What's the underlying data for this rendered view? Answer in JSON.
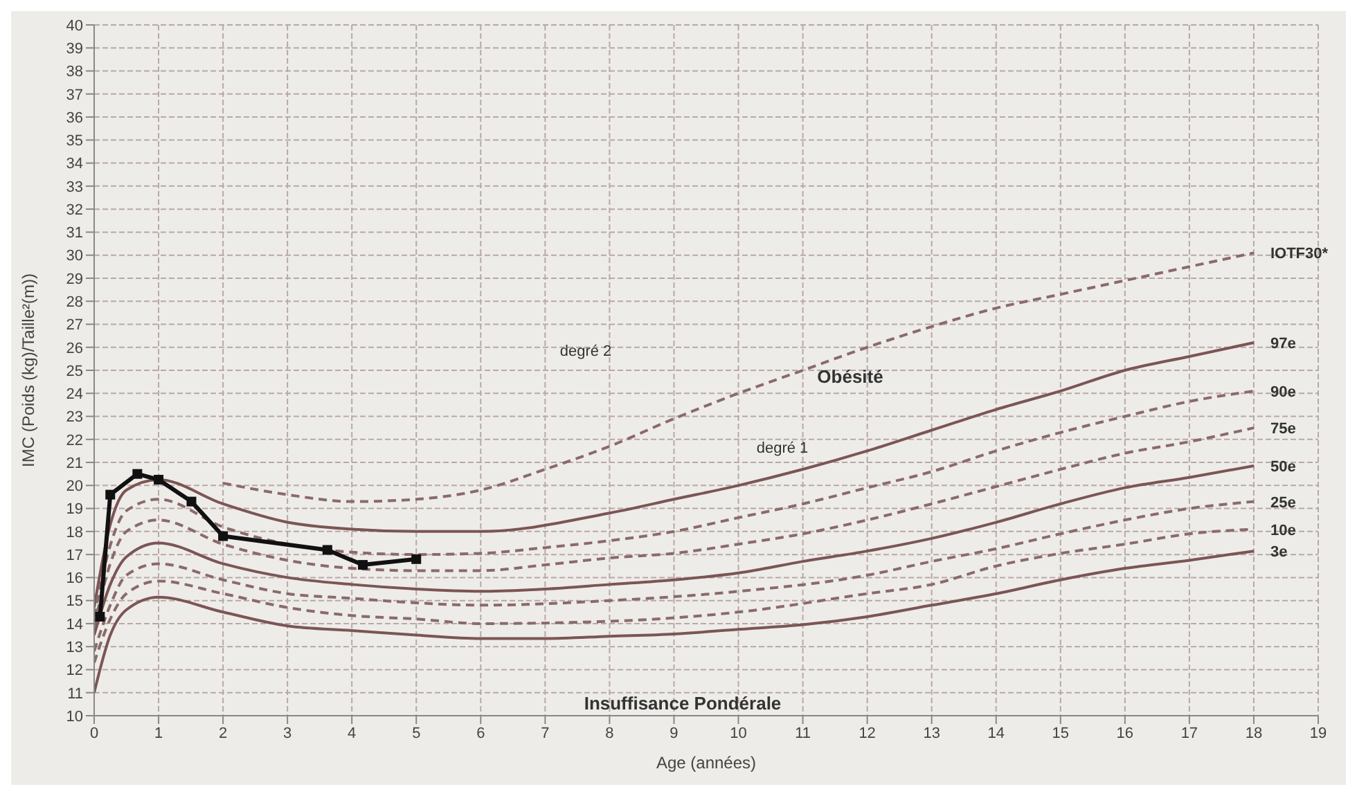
{
  "chart_data": {
    "type": "line",
    "xlabel": "Age (années)",
    "ylabel": "IMC (Poids (kg)/Taille²(m))",
    "xlim": [
      0,
      19
    ],
    "xticks": [
      0,
      1,
      2,
      3,
      4,
      5,
      6,
      7,
      8,
      9,
      10,
      11,
      12,
      13,
      14,
      15,
      16,
      17,
      18,
      19
    ],
    "ylim": [
      10,
      40
    ],
    "yticks": [
      10,
      11,
      12,
      13,
      14,
      15,
      16,
      17,
      18,
      19,
      20,
      21,
      22,
      23,
      24,
      25,
      26,
      27,
      28,
      29,
      30,
      31,
      32,
      33,
      34,
      35,
      36,
      37,
      38,
      39,
      40
    ],
    "grid": true,
    "series": [
      {
        "name": "IOTF30*",
        "color": "#8a6a6a",
        "line_style": "dashed",
        "marker": "none",
        "x": [
          2,
          3,
          4,
          5,
          6,
          7,
          8,
          9,
          10,
          11,
          12,
          13,
          14,
          15,
          16,
          17,
          18
        ],
        "values": [
          20.1,
          19.6,
          19.3,
          19.4,
          19.8,
          20.7,
          21.7,
          22.9,
          24.0,
          25.0,
          26.0,
          26.9,
          27.7,
          28.3,
          28.9,
          29.5,
          30.1
        ]
      },
      {
        "name": "97e",
        "color": "#7b5555",
        "line_style": "solid",
        "marker": "none",
        "x": [
          0,
          0.25,
          0.5,
          1,
          2,
          3,
          4,
          5,
          6,
          8,
          9,
          10,
          11,
          12,
          13,
          14,
          15,
          16,
          17,
          18
        ],
        "values": [
          14.7,
          18.3,
          19.8,
          20.25,
          19.2,
          18.4,
          18.1,
          18.0,
          18.0,
          18.8,
          19.4,
          20.0,
          20.7,
          21.5,
          22.4,
          23.3,
          24.1,
          25.0,
          25.6,
          26.2
        ]
      },
      {
        "name": "90e",
        "color": "#8a6a6a",
        "line_style": "dashed",
        "marker": "none",
        "x": [
          0,
          0.25,
          0.5,
          1,
          2,
          3,
          4,
          5,
          6,
          7,
          8,
          9,
          10,
          11,
          12,
          13,
          14,
          15,
          16,
          17,
          18
        ],
        "values": [
          14.3,
          17.4,
          18.9,
          19.4,
          18.2,
          17.45,
          17.1,
          17.0,
          17.05,
          17.3,
          17.6,
          18.0,
          18.6,
          19.2,
          19.9,
          20.6,
          21.5,
          22.3,
          23.0,
          23.65,
          24.1
        ]
      },
      {
        "name": "75e",
        "color": "#8a6a6a",
        "line_style": "dashed",
        "marker": "none",
        "x": [
          0,
          0.25,
          0.5,
          1,
          2,
          3,
          4,
          5,
          6,
          7,
          8,
          9,
          10,
          11,
          12,
          13,
          14,
          15,
          16,
          17,
          18
        ],
        "values": [
          13.9,
          16.6,
          18.0,
          18.5,
          17.45,
          16.75,
          16.4,
          16.3,
          16.3,
          16.55,
          16.85,
          17.05,
          17.45,
          17.9,
          18.5,
          19.2,
          19.95,
          20.7,
          21.4,
          21.9,
          22.5
        ]
      },
      {
        "name": "50e",
        "color": "#7b5555",
        "line_style": "solid",
        "marker": "none",
        "x": [
          0,
          0.25,
          0.5,
          1,
          2,
          3,
          4,
          5,
          6,
          7,
          8,
          9,
          10,
          11,
          12,
          13,
          14,
          15,
          16,
          17,
          18
        ],
        "values": [
          13.5,
          15.7,
          16.9,
          17.5,
          16.6,
          16.0,
          15.7,
          15.5,
          15.4,
          15.5,
          15.7,
          15.9,
          16.2,
          16.7,
          17.15,
          17.7,
          18.4,
          19.2,
          19.9,
          20.35,
          20.85
        ]
      },
      {
        "name": "25e",
        "color": "#8a6a6a",
        "line_style": "dashed",
        "marker": "none",
        "x": [
          0,
          0.25,
          0.5,
          1,
          2,
          3,
          4,
          5,
          6,
          8,
          10,
          12,
          13,
          14,
          15,
          16,
          17,
          18
        ],
        "values": [
          12.8,
          14.8,
          16.1,
          16.6,
          15.9,
          15.3,
          15.1,
          14.9,
          14.8,
          15.0,
          15.4,
          16.1,
          16.7,
          17.25,
          17.9,
          18.5,
          19.0,
          19.3
        ]
      },
      {
        "name": "10e",
        "color": "#8a6a6a",
        "line_style": "dashed",
        "marker": "none",
        "x": [
          0,
          0.25,
          0.5,
          1,
          2,
          3,
          4,
          5,
          6,
          8,
          10,
          12,
          13,
          14,
          15,
          16,
          17,
          18
        ],
        "values": [
          12.3,
          14.2,
          15.3,
          15.85,
          15.3,
          14.7,
          14.35,
          14.2,
          14.0,
          14.1,
          14.5,
          15.3,
          15.7,
          16.5,
          17.05,
          17.45,
          17.9,
          18.1
        ]
      },
      {
        "name": "3e",
        "color": "#7b5555",
        "line_style": "solid",
        "marker": "none",
        "x": [
          0,
          0.25,
          0.5,
          1,
          2,
          3,
          4,
          5,
          6,
          7,
          8,
          9,
          10,
          11,
          12,
          13,
          14,
          15,
          16,
          17,
          18
        ],
        "values": [
          11.0,
          13.5,
          14.6,
          15.15,
          14.5,
          13.9,
          13.7,
          13.5,
          13.35,
          13.35,
          13.45,
          13.55,
          13.75,
          13.95,
          14.3,
          14.8,
          15.3,
          15.9,
          16.4,
          16.75,
          17.15
        ]
      },
      {
        "color": "#111111",
        "line_style": "solid",
        "marker": "square",
        "x": [
          0.09,
          0.25,
          0.67,
          1.0,
          1.51,
          2.0,
          3.62,
          4.17,
          5.0
        ],
        "values": [
          14.3,
          19.6,
          20.5,
          20.25,
          19.3,
          17.8,
          17.2,
          16.55,
          16.8
        ]
      }
    ],
    "annotations": [
      "degré 2",
      "Obésité",
      "degré 1",
      "Insuffisance Pondérale"
    ]
  }
}
